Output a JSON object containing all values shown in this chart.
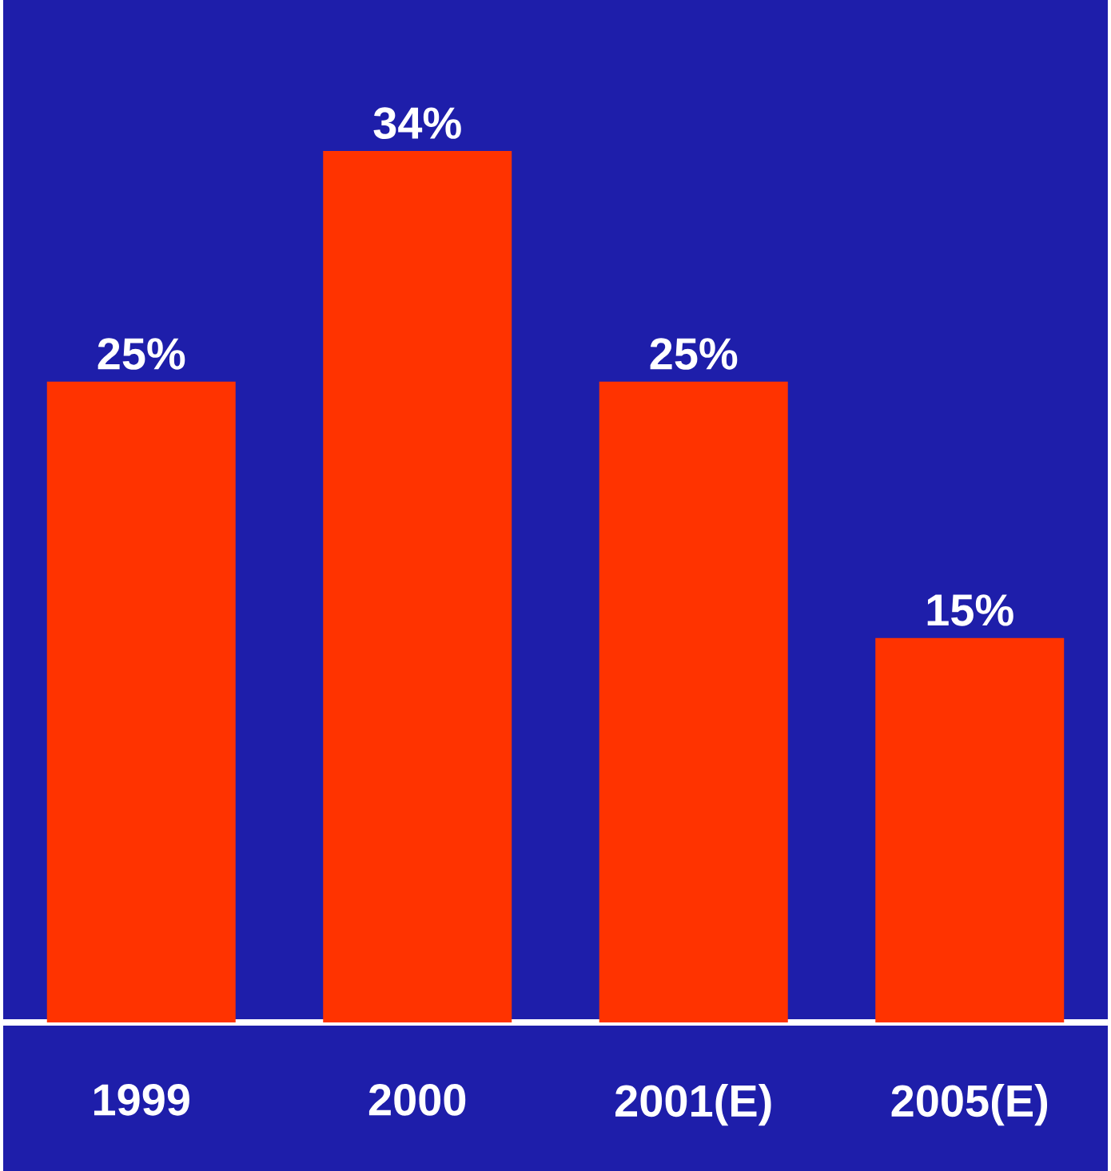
{
  "chart_data": {
    "type": "bar",
    "categories": [
      "1999",
      "2000",
      "2001(E)",
      "2005(E)"
    ],
    "values": [
      25,
      34,
      25,
      15
    ],
    "value_labels": [
      "25%",
      "34%",
      "25%",
      "15%"
    ],
    "color": "#ff3300",
    "tick_labels": "x"
  }
}
